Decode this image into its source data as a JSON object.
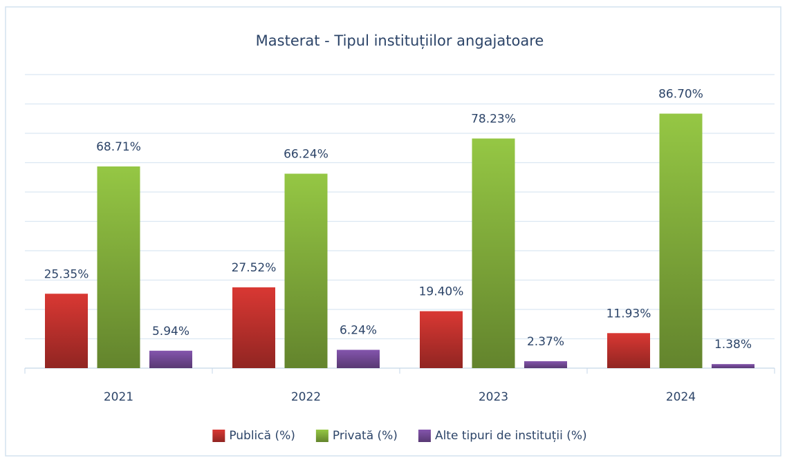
{
  "chart_data": {
    "type": "bar",
    "title": "Masterat - Tipul instituțiilor angajatoare",
    "categories": [
      "2021",
      "2022",
      "2023",
      "2024"
    ],
    "series": [
      {
        "name": "Publică (%)",
        "color": "#c9342f",
        "values": [
          25.35,
          27.52,
          19.4,
          11.93
        ],
        "value_labels": [
          "25.35%",
          "27.52%",
          "19.40%",
          "11.93%"
        ]
      },
      {
        "name": "Privată (%)",
        "color": "#8ab83f",
        "values": [
          68.71,
          66.24,
          78.23,
          86.7
        ],
        "value_labels": [
          "68.71%",
          "66.24%",
          "78.23%",
          "86.70%"
        ]
      },
      {
        "name": "Alte tipuri de instituții (%)",
        "color": "#7a4fa0",
        "values": [
          5.94,
          6.24,
          2.37,
          1.38
        ],
        "value_labels": [
          "5.94%",
          "6.24%",
          "2.37%",
          "1.38%"
        ]
      }
    ],
    "ylim": [
      0,
      100
    ],
    "yticks": [
      0,
      10,
      20,
      30,
      40,
      50,
      60,
      70,
      80,
      90,
      100
    ],
    "grid": true,
    "legend": "bottom"
  }
}
